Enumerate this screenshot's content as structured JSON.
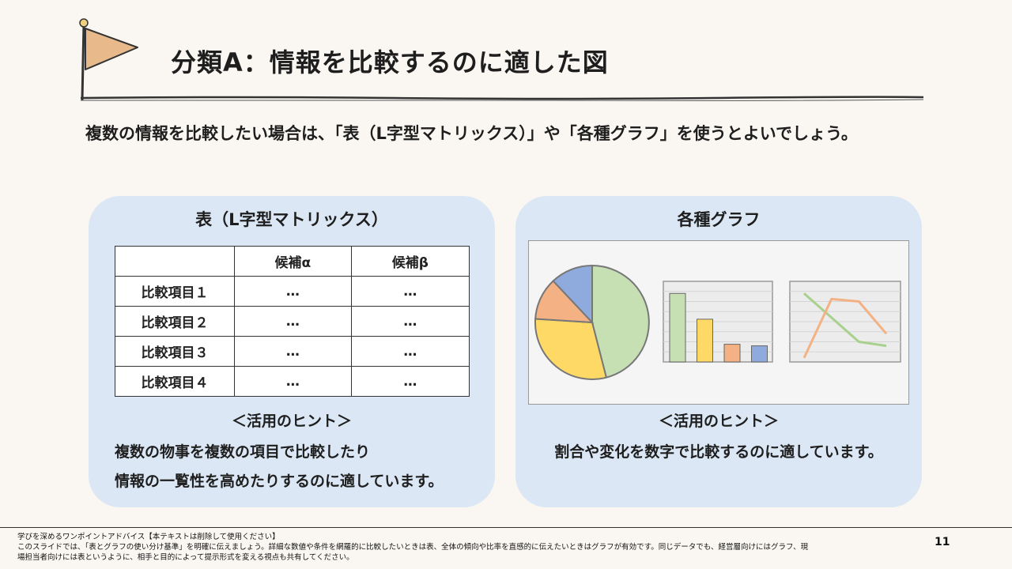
{
  "slide": {
    "title": "分類A：情報を比較するのに適した図",
    "lead": "複数の情報を比較したい場合は、「表（L字型マトリックス）」や「各種グラフ」を使うとよいでしょう。",
    "page_number": "11"
  },
  "left_panel": {
    "title": "表（L字型マトリックス）",
    "table": {
      "headers": [
        "",
        "候補α",
        "候補β"
      ],
      "rows": [
        [
          "比較項目１",
          "…",
          "…"
        ],
        [
          "比較項目２",
          "…",
          "…"
        ],
        [
          "比較項目３",
          "…",
          "…"
        ],
        [
          "比較項目４",
          "…",
          "…"
        ]
      ]
    },
    "hint_label": "＜活用のヒント＞",
    "description_lines": [
      "複数の物事を複数の項目で比較したり",
      "情報の一覧性を高めたりするのに適しています。"
    ]
  },
  "right_panel": {
    "title": "各種グラフ",
    "hint_label": "＜活用のヒント＞",
    "description": "割合や変化を数字で比較するのに適しています。"
  },
  "chart_data": [
    {
      "type": "pie",
      "values": [
        46,
        30,
        12,
        12
      ],
      "colors": [
        "#c6e0b4",
        "#ffd966",
        "#f4b183",
        "#8faadc"
      ]
    },
    {
      "type": "bar",
      "values": [
        85,
        53,
        22,
        20
      ],
      "ylim": [
        0,
        100
      ],
      "colors": [
        "#c6e0b4",
        "#ffd966",
        "#f4b183",
        "#8faadc"
      ]
    },
    {
      "type": "line",
      "x": [
        1,
        2,
        3,
        4
      ],
      "ylim": [
        0,
        100
      ],
      "series": [
        {
          "values": [
            85,
            55,
            25,
            20
          ],
          "color": "#a9d18e"
        },
        {
          "values": [
            5,
            78,
            75,
            35
          ],
          "color": "#f4b183"
        }
      ]
    }
  ],
  "footer": {
    "lines": [
      "学びを深めるワンポイントアドバイス【本テキストは削除して使用ください】",
      "このスライドでは、「表とグラフの使い分け基準」を明確に伝えましょう。詳細な数値や条件を網羅的に比較したいときは表、全体の傾向や比率を直感的に伝えたいときはグラフが有効です。同じデータでも、経営層向けにはグラフ、現",
      "場担当者向けには表というように、相手と目的によって提示形式を変える視点も共有してください。"
    ]
  },
  "colors": {
    "background": "#faf7f2",
    "panel": "#dbe7f4",
    "flag": "#e8b98a"
  },
  "icons": {
    "title_marker": "flag-icon"
  }
}
